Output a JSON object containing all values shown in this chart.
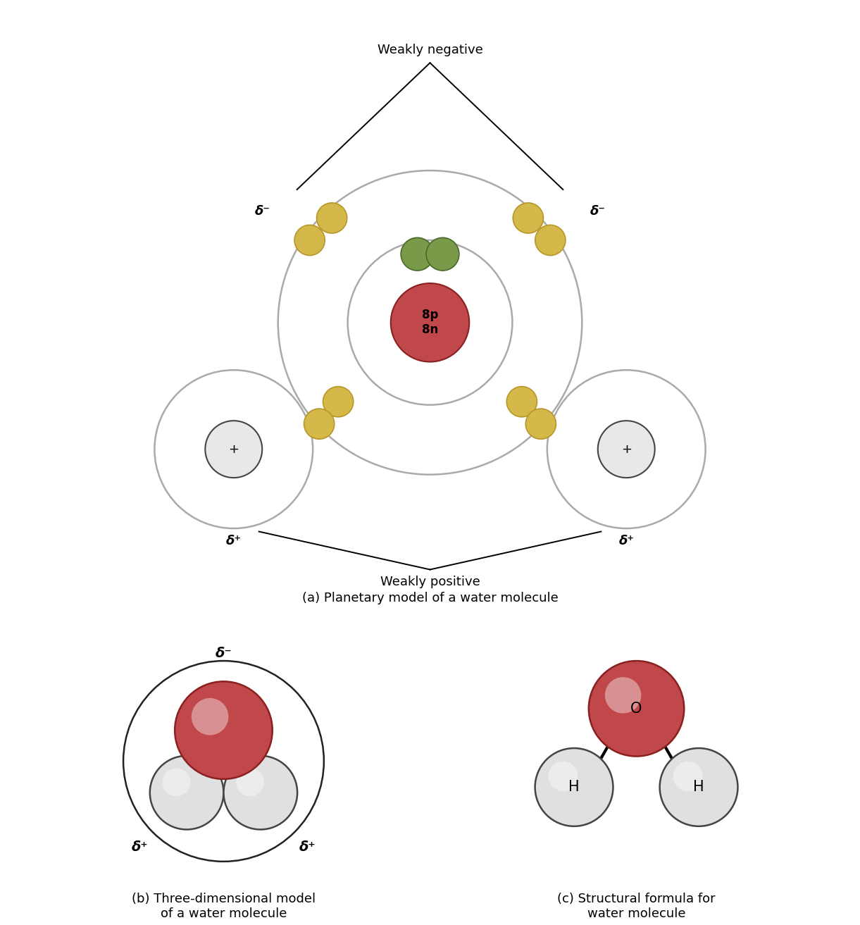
{
  "bg_color": "#ffffff",
  "nucleus_color": "#c0474a",
  "nucleus_edge": "#8b2020",
  "electron_color": "#d4b84a",
  "electron_edge": "#b8962a",
  "shared_electron_color": "#7a9a4a",
  "shared_electron_edge": "#4a6a2a",
  "hydrogen_color": "#e8e8e8",
  "hydrogen_edge": "#444444",
  "orbit_color": "#aaaaaa",
  "oxygen_3d_color": "#c0474a",
  "oxygen_3d_edge": "#8b2020",
  "hydrogen_3d_color": "#e0e0e0",
  "hydrogen_3d_edge": "#444444",
  "title_a": "(a) Planetary model of a water molecule",
  "title_b": "(b) Three-dimensional model\nof a water molecule",
  "title_c": "(c) Structural formula for\nwater molecule",
  "label_weakly_negative": "Weakly negative",
  "label_weakly_positive": "Weakly positive",
  "delta_minus": "δ⁻",
  "delta_plus": "δ⁺",
  "nucleus_label": "8p\n8n",
  "H_label": "H",
  "O_label": "O",
  "plus_label": "+",
  "font_size_label": 13,
  "font_size_title": 13,
  "font_size_nucleus": 12,
  "font_size_delta": 13
}
